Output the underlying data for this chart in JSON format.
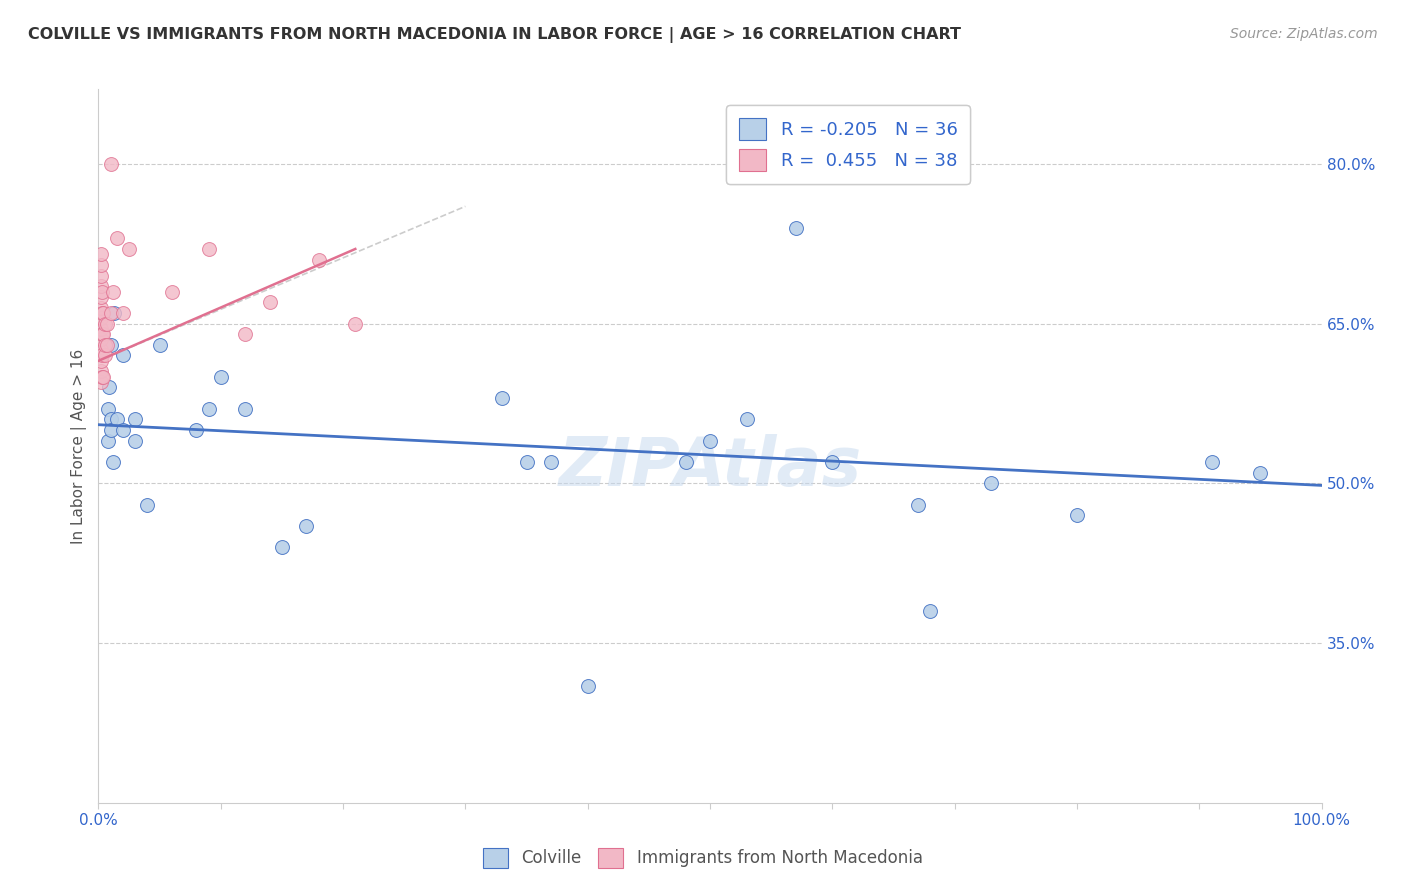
{
  "title": "COLVILLE VS IMMIGRANTS FROM NORTH MACEDONIA IN LABOR FORCE | AGE > 16 CORRELATION CHART",
  "source": "Source: ZipAtlas.com",
  "ylabel": "In Labor Force | Age > 16",
  "xlim": [
    0.0,
    1.0
  ],
  "ylim": [
    0.2,
    0.87
  ],
  "x_ticks": [
    0.0,
    0.1,
    0.2,
    0.3,
    0.4,
    0.5,
    0.6,
    0.7,
    0.8,
    0.9,
    1.0
  ],
  "x_tick_labels": [
    "0.0%",
    "",
    "",
    "",
    "",
    "",
    "",
    "",
    "",
    "",
    "100.0%"
  ],
  "y_tick_labels_right": [
    "35.0%",
    "50.0%",
    "65.0%",
    "80.0%"
  ],
  "y_tick_vals_right": [
    0.35,
    0.5,
    0.65,
    0.8
  ],
  "legend_blue_R": "-0.205",
  "legend_blue_N": "36",
  "legend_pink_R": "0.455",
  "legend_pink_N": "38",
  "blue_color": "#b8d0e8",
  "pink_color": "#f2b8c6",
  "blue_line_color": "#4472c4",
  "pink_line_color": "#e07090",
  "blue_scatter": {
    "x": [
      0.008,
      0.008,
      0.009,
      0.01,
      0.01,
      0.01,
      0.012,
      0.013,
      0.015,
      0.02,
      0.02,
      0.03,
      0.03,
      0.04,
      0.05,
      0.08,
      0.09,
      0.1,
      0.12,
      0.15,
      0.17,
      0.33,
      0.35,
      0.37,
      0.4,
      0.48,
      0.5,
      0.53,
      0.57,
      0.6,
      0.67,
      0.68,
      0.73,
      0.8,
      0.91,
      0.95
    ],
    "y": [
      0.54,
      0.57,
      0.59,
      0.63,
      0.56,
      0.55,
      0.52,
      0.66,
      0.56,
      0.62,
      0.55,
      0.54,
      0.56,
      0.48,
      0.63,
      0.55,
      0.57,
      0.6,
      0.57,
      0.44,
      0.46,
      0.58,
      0.52,
      0.52,
      0.31,
      0.52,
      0.54,
      0.56,
      0.74,
      0.52,
      0.48,
      0.38,
      0.5,
      0.47,
      0.52,
      0.51
    ]
  },
  "pink_scatter": {
    "x": [
      0.002,
      0.002,
      0.002,
      0.002,
      0.002,
      0.002,
      0.002,
      0.002,
      0.002,
      0.002,
      0.002,
      0.002,
      0.002,
      0.003,
      0.003,
      0.003,
      0.003,
      0.003,
      0.004,
      0.004,
      0.004,
      0.005,
      0.005,
      0.005,
      0.007,
      0.007,
      0.01,
      0.01,
      0.012,
      0.015,
      0.02,
      0.025,
      0.06,
      0.09,
      0.12,
      0.14,
      0.18,
      0.21
    ],
    "y": [
      0.595,
      0.605,
      0.615,
      0.625,
      0.635,
      0.645,
      0.655,
      0.665,
      0.675,
      0.685,
      0.695,
      0.705,
      0.715,
      0.62,
      0.64,
      0.66,
      0.68,
      0.6,
      0.6,
      0.64,
      0.66,
      0.62,
      0.63,
      0.65,
      0.63,
      0.65,
      0.66,
      0.8,
      0.68,
      0.73,
      0.66,
      0.72,
      0.68,
      0.72,
      0.64,
      0.67,
      0.71,
      0.65
    ]
  },
  "blue_trend": {
    "x_start": 0.0,
    "x_end": 1.0,
    "y_start": 0.555,
    "y_end": 0.498
  },
  "pink_trend": {
    "x_start": 0.0,
    "x_end": 0.21,
    "y_start": 0.615,
    "y_end": 0.72
  },
  "dashed_trend": {
    "x_start": 0.0,
    "x_end": 0.3,
    "y_start": 0.615,
    "y_end": 0.76
  },
  "watermark": "ZIPAtlas",
  "background_color": "#ffffff",
  "grid_color": "#cccccc"
}
